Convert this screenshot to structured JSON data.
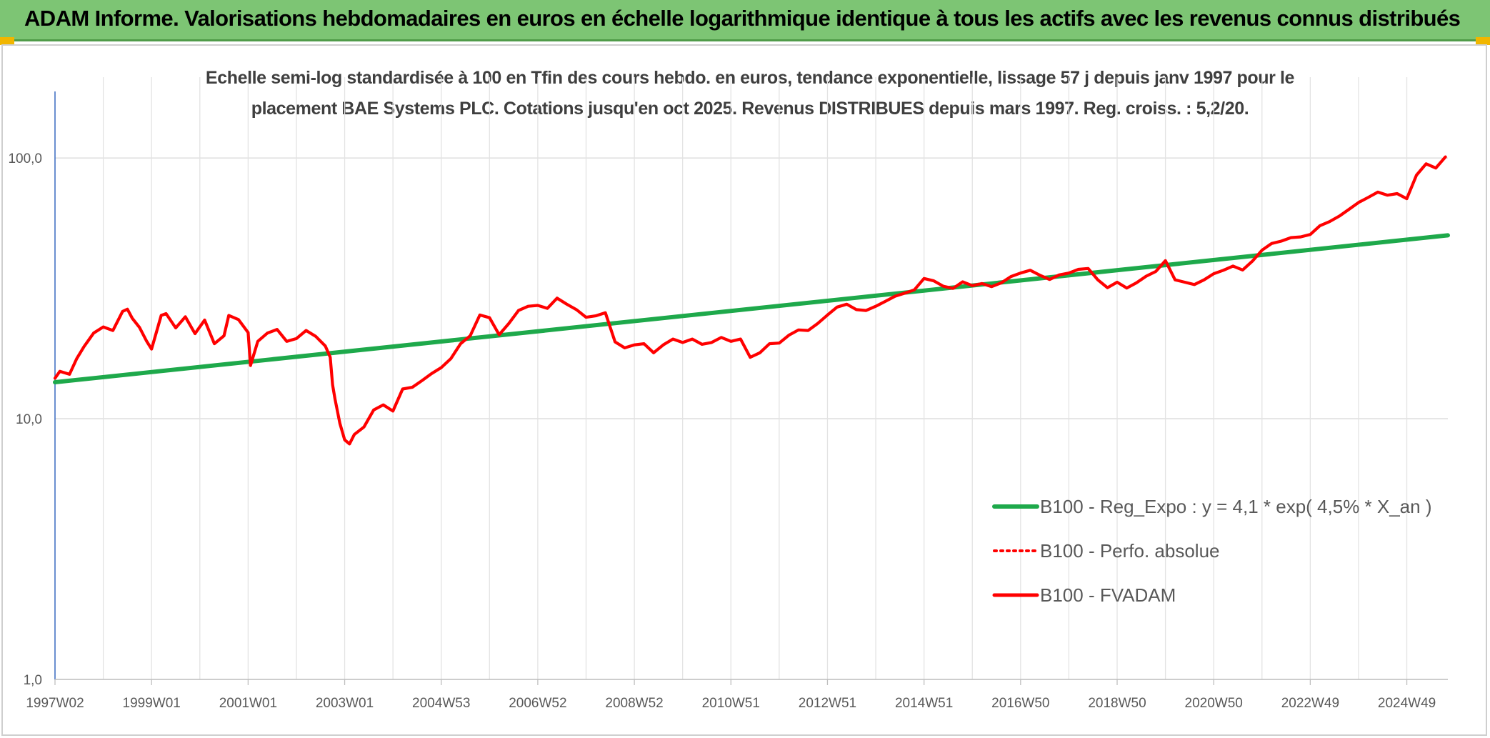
{
  "header": {
    "title": "ADAM Informe. Valorisations hebdomadaires en euros en échelle logarithmique identique à tous les actifs avec les revenus connus distribués"
  },
  "chart_data": {
    "type": "line",
    "title": "",
    "subtitle_line1": "Echelle semi-log standardisée à 100 en Tfin des cours hebdo. en euros, tendance exponentielle, lissage 57 j depuis janv 1997 pour le",
    "subtitle_line2": "placement BAE Systems PLC. Cotations jusqu'en oct 2025. Revenus DISTRIBUES depuis mars 1997. Reg. croiss. : 5,2/20.",
    "y_scale": "log",
    "ylim": [
      1,
      180
    ],
    "xlim": [
      1997.0,
      2025.85
    ],
    "y_ticks": [
      {
        "value": 1,
        "label": "1,0"
      },
      {
        "value": 10,
        "label": "10,0"
      },
      {
        "value": 100,
        "label": "100,0"
      }
    ],
    "x_ticks": [
      {
        "value": 1997.0,
        "label": "1997W02"
      },
      {
        "value": 1999.0,
        "label": "1999W01"
      },
      {
        "value": 2001.0,
        "label": "2001W01"
      },
      {
        "value": 2003.0,
        "label": "2003W01"
      },
      {
        "value": 2005.0,
        "label": "2004W53"
      },
      {
        "value": 2007.0,
        "label": "2006W52"
      },
      {
        "value": 2009.0,
        "label": "2008W52"
      },
      {
        "value": 2011.0,
        "label": "2010W51"
      },
      {
        "value": 2013.0,
        "label": "2012W51"
      },
      {
        "value": 2015.0,
        "label": "2014W51"
      },
      {
        "value": 2017.0,
        "label": "2016W50"
      },
      {
        "value": 2019.0,
        "label": "2018W50"
      },
      {
        "value": 2021.0,
        "label": "2020W50"
      },
      {
        "value": 2023.0,
        "label": "2022W49"
      },
      {
        "value": 2025.0,
        "label": "2024W49"
      }
    ],
    "minor_gridlines_x": [
      1998,
      2000,
      2002,
      2004,
      2006,
      2008,
      2010,
      2012,
      2014,
      2016,
      2018,
      2020,
      2022,
      2024
    ],
    "grid": true,
    "legend_position": "bottom-right",
    "series": [
      {
        "name": "B100 - Reg_Expo : y = 4,1 * exp( 4,5% *  X_an )",
        "color": "#1ea94b",
        "style": "solid",
        "x": [
          1997.0,
          2025.85
        ],
        "values": [
          13.8,
          50.5
        ]
      },
      {
        "name": "B100 - Perfo. absolue",
        "color": "#ff0000",
        "style": "dotted",
        "x": [],
        "values": []
      },
      {
        "name": "B100 - FVADAM",
        "color": "#ff0000",
        "style": "solid",
        "x": [
          1997.0,
          1997.1,
          1997.3,
          1997.45,
          1997.6,
          1997.8,
          1998.0,
          1998.2,
          1998.4,
          1998.5,
          1998.6,
          1998.75,
          1998.9,
          1999.0,
          1999.2,
          1999.3,
          1999.5,
          1999.7,
          1999.9,
          2000.1,
          2000.3,
          2000.5,
          2000.6,
          2000.8,
          2001.0,
          2001.05,
          2001.2,
          2001.4,
          2001.6,
          2001.8,
          2002.0,
          2002.2,
          2002.4,
          2002.6,
          2002.7,
          2002.75,
          2002.8,
          2002.9,
          2003.0,
          2003.1,
          2003.2,
          2003.4,
          2003.6,
          2003.8,
          2004.0,
          2004.2,
          2004.4,
          2004.6,
          2004.8,
          2005.0,
          2005.2,
          2005.4,
          2005.6,
          2005.8,
          2006.0,
          2006.2,
          2006.4,
          2006.6,
          2006.8,
          2007.0,
          2007.2,
          2007.4,
          2007.6,
          2007.8,
          2008.0,
          2008.2,
          2008.4,
          2008.6,
          2008.8,
          2009.0,
          2009.2,
          2009.4,
          2009.6,
          2009.8,
          2010.0,
          2010.2,
          2010.4,
          2010.6,
          2010.8,
          2011.0,
          2011.2,
          2011.4,
          2011.6,
          2011.8,
          2012.0,
          2012.2,
          2012.4,
          2012.6,
          2012.8,
          2013.0,
          2013.2,
          2013.4,
          2013.6,
          2013.8,
          2014.0,
          2014.2,
          2014.4,
          2014.6,
          2014.8,
          2015.0,
          2015.2,
          2015.4,
          2015.6,
          2015.8,
          2016.0,
          2016.2,
          2016.4,
          2016.6,
          2016.8,
          2017.0,
          2017.2,
          2017.4,
          2017.6,
          2017.8,
          2018.0,
          2018.2,
          2018.4,
          2018.6,
          2018.8,
          2019.0,
          2019.2,
          2019.4,
          2019.6,
          2019.8,
          2020.0,
          2020.2,
          2020.4,
          2020.6,
          2020.8,
          2021.0,
          2021.2,
          2021.4,
          2021.6,
          2021.8,
          2022.0,
          2022.2,
          2022.4,
          2022.6,
          2022.8,
          2023.0,
          2023.2,
          2023.4,
          2023.6,
          2023.8,
          2024.0,
          2024.2,
          2024.4,
          2024.6,
          2024.8,
          2025.0,
          2025.2,
          2025.4,
          2025.6,
          2025.8
        ],
        "values": [
          14.3,
          15.2,
          14.8,
          17.0,
          18.9,
          21.3,
          22.5,
          21.8,
          25.8,
          26.3,
          24.3,
          22.4,
          19.8,
          18.5,
          24.9,
          25.3,
          22.3,
          24.6,
          21.2,
          23.9,
          19.4,
          20.8,
          24.9,
          24.0,
          21.4,
          16.0,
          19.8,
          21.3,
          22.0,
          19.8,
          20.3,
          21.8,
          20.7,
          19.0,
          17.2,
          13.5,
          11.9,
          9.6,
          8.3,
          8.0,
          8.7,
          9.3,
          10.8,
          11.3,
          10.7,
          13.0,
          13.2,
          14.0,
          14.9,
          15.7,
          17.0,
          19.4,
          20.8,
          25.0,
          24.4,
          21.0,
          23.2,
          26.0,
          27.0,
          27.2,
          26.5,
          29.0,
          27.5,
          26.2,
          24.5,
          24.8,
          25.5,
          19.7,
          18.7,
          19.2,
          19.4,
          17.9,
          19.2,
          20.2,
          19.6,
          20.2,
          19.3,
          19.6,
          20.5,
          19.8,
          20.2,
          17.2,
          17.9,
          19.4,
          19.5,
          20.9,
          21.9,
          21.8,
          23.2,
          25.0,
          26.8,
          27.5,
          26.2,
          26.0,
          27.0,
          28.2,
          29.5,
          30.3,
          31.2,
          34.5,
          33.8,
          32.2,
          31.6,
          33.5,
          32.4,
          33.0,
          32.1,
          33.2,
          35.1,
          36.2,
          37.1,
          35.5,
          34.2,
          35.6,
          36.2,
          37.4,
          37.7,
          34.1,
          31.8,
          33.4,
          31.7,
          33.2,
          35.2,
          36.7,
          40.4,
          34.1,
          33.4,
          32.7,
          34.1,
          36.0,
          37.1,
          38.5,
          37.2,
          40.2,
          44.3,
          47.0,
          48.0,
          49.5,
          49.8,
          50.9,
          55.0,
          57.0,
          59.8,
          63.5,
          67.5,
          70.6,
          74.0,
          72.0,
          73.0,
          69.8,
          86.0,
          95.0,
          91.5,
          101.0
        ]
      }
    ]
  }
}
